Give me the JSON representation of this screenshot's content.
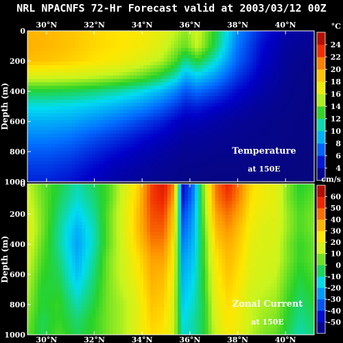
{
  "title": "NRL NPACNFS 72-Hr Forecast valid at 2003/03/12 00Z",
  "x_ticks": [
    "30°N",
    "32°N",
    "34°N",
    "36°N",
    "38°N",
    "40°N"
  ],
  "y_ticks": [
    "0",
    "200",
    "400",
    "600",
    "800",
    "1000"
  ],
  "y_label": "Depth (m)",
  "chart_data": [
    {
      "type": "heatmap",
      "annotation": [
        "Temperature",
        "at 150E"
      ],
      "ylabel": "Depth (m)",
      "colorbar_unit": "°C",
      "colorbar_ticks": [
        "4",
        "6",
        "8",
        "10",
        "12",
        "14",
        "16",
        "18",
        "20",
        "22",
        "24"
      ],
      "vmin": 3,
      "vmax": 25,
      "xlim": [
        29.2,
        41.2
      ],
      "ylim": [
        1000,
        0
      ],
      "y_depths": [
        0,
        100,
        200,
        300,
        400,
        500,
        600,
        700,
        800,
        900,
        1000
      ],
      "x_lats": [
        29.2,
        30,
        31,
        32,
        33,
        34,
        34.8,
        35.4,
        35.8,
        36.3,
        37,
        38,
        39,
        40,
        41.2
      ],
      "values": [
        [
          19.0,
          19.0,
          18.6,
          18.0,
          17.6,
          17.2,
          16.4,
          15.2,
          14.4,
          15.6,
          13.0,
          8.5,
          6.0,
          4.5,
          4.0
        ],
        [
          19.2,
          19.0,
          18.6,
          18.0,
          17.6,
          17.0,
          16.0,
          14.6,
          13.8,
          15.4,
          12.6,
          8.0,
          5.5,
          4.2,
          3.8
        ],
        [
          18.8,
          18.6,
          18.2,
          17.6,
          17.0,
          16.0,
          15.0,
          13.4,
          11.6,
          12.8,
          11.0,
          7.5,
          5.2,
          4.0,
          3.6
        ],
        [
          16.0,
          16.0,
          15.8,
          15.4,
          14.8,
          13.8,
          12.6,
          11.2,
          9.4,
          10.2,
          9.0,
          6.5,
          4.8,
          3.9,
          3.5
        ],
        [
          12.6,
          12.6,
          12.4,
          12.0,
          11.4,
          10.6,
          9.6,
          8.4,
          7.2,
          7.8,
          7.0,
          5.4,
          4.4,
          3.8,
          3.5
        ],
        [
          10.6,
          10.6,
          10.4,
          10.0,
          9.4,
          8.6,
          7.6,
          6.6,
          5.8,
          6.0,
          5.4,
          4.6,
          4.0,
          3.7,
          3.5
        ],
        [
          9.4,
          9.4,
          9.2,
          8.6,
          7.8,
          6.8,
          6.0,
          5.2,
          4.8,
          4.8,
          4.4,
          4.0,
          3.8,
          3.6,
          3.5
        ],
        [
          8.4,
          8.4,
          8.0,
          7.2,
          6.4,
          5.6,
          5.0,
          4.5,
          4.2,
          4.2,
          4.0,
          3.8,
          3.7,
          3.6,
          3.5
        ],
        [
          7.4,
          7.4,
          7.0,
          6.2,
          5.4,
          4.8,
          4.4,
          4.1,
          3.9,
          3.9,
          3.8,
          3.7,
          3.6,
          3.5,
          3.4
        ],
        [
          6.6,
          6.6,
          6.2,
          5.4,
          4.7,
          4.3,
          4.0,
          3.8,
          3.7,
          3.7,
          3.6,
          3.6,
          3.5,
          3.5,
          3.4
        ],
        [
          6.0,
          6.0,
          5.6,
          4.9,
          4.3,
          4.0,
          3.8,
          3.7,
          3.6,
          3.6,
          3.5,
          3.5,
          3.5,
          3.4,
          3.4
        ]
      ]
    },
    {
      "type": "heatmap",
      "annotation": [
        "Zonal Current",
        "at 150E"
      ],
      "ylabel": "Depth (m)",
      "colorbar_unit": "cm/s",
      "colorbar_ticks": [
        "-50",
        "-40",
        "-30",
        "-20",
        "-10",
        "0",
        "10",
        "20",
        "30",
        "40",
        "50",
        "60"
      ],
      "vmin": -55,
      "vmax": 65,
      "xlim": [
        29.2,
        41.2
      ],
      "ylim": [
        1000,
        0
      ],
      "y_depths": [
        0,
        100,
        200,
        300,
        400,
        500,
        600,
        700,
        800,
        900,
        1000
      ],
      "x_lats": [
        29.2,
        29.8,
        30.5,
        31.3,
        32.0,
        32.6,
        33.2,
        33.8,
        34.4,
        34.9,
        35.3,
        35.7,
        36.1,
        36.6,
        37.1,
        37.6,
        38.1,
        38.6,
        39.1,
        39.6,
        40.1,
        40.6,
        41.2
      ],
      "values": [
        [
          12,
          4,
          -2,
          -10,
          -4,
          2,
          14,
          26,
          48,
          55,
          40,
          -42,
          -30,
          10,
          42,
          52,
          40,
          26,
          20,
          18,
          6,
          -2,
          2
        ],
        [
          14,
          5,
          -4,
          -12,
          -6,
          2,
          15,
          28,
          48,
          52,
          36,
          -40,
          -28,
          8,
          40,
          48,
          38,
          24,
          20,
          18,
          6,
          0,
          4
        ],
        [
          16,
          6,
          -6,
          -16,
          -8,
          4,
          16,
          30,
          46,
          48,
          30,
          -34,
          -24,
          6,
          36,
          42,
          34,
          22,
          18,
          17,
          8,
          2,
          6
        ],
        [
          18,
          6,
          -8,
          -20,
          -10,
          4,
          16,
          30,
          44,
          44,
          28,
          -30,
          -22,
          4,
          32,
          38,
          30,
          20,
          16,
          16,
          8,
          2,
          6
        ],
        [
          16,
          4,
          -8,
          -22,
          -10,
          4,
          15,
          28,
          40,
          40,
          24,
          -26,
          -20,
          2,
          28,
          34,
          28,
          18,
          16,
          15,
          6,
          0,
          4
        ],
        [
          14,
          2,
          -6,
          -20,
          -8,
          6,
          14,
          24,
          36,
          36,
          22,
          -22,
          -18,
          2,
          24,
          32,
          26,
          17,
          15,
          14,
          6,
          0,
          4
        ],
        [
          12,
          0,
          -4,
          -18,
          -6,
          6,
          14,
          22,
          34,
          32,
          20,
          -20,
          -16,
          0,
          22,
          30,
          24,
          16,
          14,
          12,
          4,
          -2,
          2
        ],
        [
          10,
          -2,
          -2,
          -14,
          -4,
          6,
          12,
          20,
          32,
          30,
          18,
          -18,
          -14,
          0,
          20,
          28,
          22,
          14,
          12,
          10,
          2,
          -4,
          0
        ],
        [
          8,
          -2,
          0,
          -10,
          -2,
          6,
          10,
          18,
          30,
          28,
          16,
          -16,
          -12,
          -2,
          18,
          26,
          20,
          12,
          10,
          8,
          0,
          -6,
          -2
        ],
        [
          6,
          -4,
          0,
          -6,
          0,
          6,
          10,
          18,
          28,
          26,
          16,
          -14,
          -10,
          -2,
          16,
          24,
          20,
          12,
          8,
          6,
          -2,
          -8,
          -4
        ],
        [
          4,
          -4,
          2,
          -4,
          0,
          6,
          10,
          18,
          26,
          24,
          14,
          -12,
          -10,
          -2,
          14,
          22,
          18,
          10,
          6,
          4,
          -4,
          -10,
          -6
        ]
      ]
    }
  ]
}
